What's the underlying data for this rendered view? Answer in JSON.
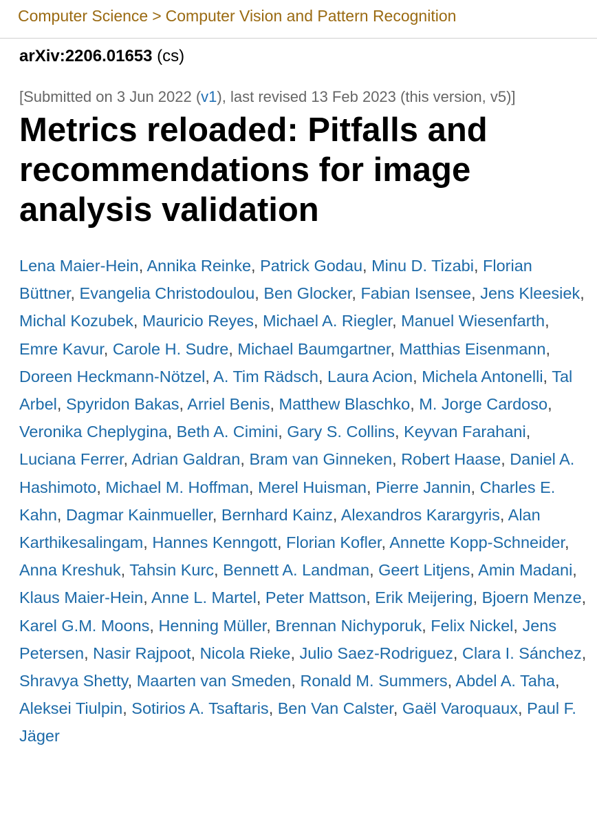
{
  "breadcrumb": {
    "category": "Computer Science",
    "separator": ">",
    "subcategory": "Computer Vision and Pattern Recognition"
  },
  "identifier": {
    "id": "arXiv:2206.01653",
    "subject": "(cs)"
  },
  "submission": {
    "prefix": "[Submitted on 3 Jun 2022 (",
    "v1_link": "v1",
    "suffix": "), last revised 13 Feb 2023 (this version, v5)]"
  },
  "title": "Metrics reloaded: Pitfalls and recommendations for image analysis validation",
  "authors": [
    "Lena Maier-Hein",
    "Annika Reinke",
    "Patrick Godau",
    "Minu D. Tizabi",
    "Florian Büttner",
    "Evangelia Christodoulou",
    "Ben Glocker",
    "Fabian Isensee",
    "Jens Kleesiek",
    "Michal Kozubek",
    "Mauricio Reyes",
    "Michael A. Riegler",
    "Manuel Wiesenfarth",
    "Emre Kavur",
    "Carole H. Sudre",
    "Michael Baumgartner",
    "Matthias Eisenmann",
    "Doreen Heckmann-Nötzel",
    "A. Tim Rädsch",
    "Laura Acion",
    "Michela Antonelli",
    "Tal Arbel",
    "Spyridon Bakas",
    "Arriel Benis",
    "Matthew Blaschko",
    "M. Jorge Cardoso",
    "Veronika Cheplygina",
    "Beth A. Cimini",
    "Gary S. Collins",
    "Keyvan Farahani",
    "Luciana Ferrer",
    "Adrian Galdran",
    "Bram van Ginneken",
    "Robert Haase",
    "Daniel A. Hashimoto",
    "Michael M. Hoffman",
    "Merel Huisman",
    "Pierre Jannin",
    "Charles E. Kahn",
    "Dagmar Kainmueller",
    "Bernhard Kainz",
    "Alexandros Karargyris",
    "Alan Karthikesalingam",
    "Hannes Kenngott",
    "Florian Kofler",
    "Annette Kopp-Schneider",
    "Anna Kreshuk",
    "Tahsin Kurc",
    "Bennett A. Landman",
    "Geert Litjens",
    "Amin Madani",
    "Klaus Maier-Hein",
    "Anne L. Martel",
    "Peter Mattson",
    "Erik Meijering",
    "Bjoern Menze",
    "Karel G.M. Moons",
    "Henning Müller",
    "Brennan Nichyporuk",
    "Felix Nickel",
    "Jens Petersen",
    "Nasir Rajpoot",
    "Nicola Rieke",
    "Julio Saez-Rodriguez",
    "Clara I. Sánchez",
    "Shravya Shetty",
    "Maarten van Smeden",
    "Ronald M. Summers",
    "Abdel A. Taha",
    "Aleksei Tiulpin",
    "Sotirios A. Tsaftaris",
    "Ben Van Calster",
    "Gaël Varoquaux",
    "Paul F. Jäger"
  ]
}
